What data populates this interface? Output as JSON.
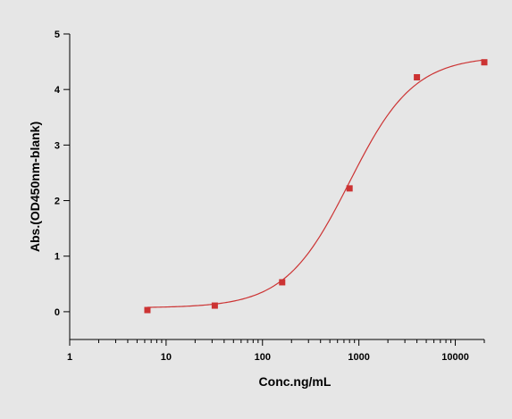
{
  "chart_data": {
    "type": "scatter",
    "xlabel": "Conc.ng/mL",
    "ylabel": "Abs.(OD450nm-blank)",
    "xscale": "log",
    "xlim": [
      1,
      20000
    ],
    "ylim": [
      -0.5,
      5
    ],
    "x_ticks": [
      1,
      10,
      100,
      1000,
      10000
    ],
    "x_tick_labels": [
      "1",
      "10",
      "100",
      "1000",
      "10000"
    ],
    "y_ticks": [
      0,
      1,
      2,
      3,
      4,
      5
    ],
    "y_tick_labels": [
      "0",
      "1",
      "2",
      "3",
      "4",
      "5"
    ],
    "grid": false,
    "legend": "none",
    "colors": {
      "series": "#cc3333"
    },
    "series": [
      {
        "x": [
          6.4,
          32,
          160,
          800,
          4000,
          20000
        ],
        "y": [
          0.03,
          0.11,
          0.53,
          2.22,
          4.22,
          4.49
        ]
      }
    ],
    "fit_curve": {
      "model": "4PL",
      "bottom": 0.07,
      "top": 4.6,
      "ec50": 800,
      "hill": 1.3
    }
  }
}
